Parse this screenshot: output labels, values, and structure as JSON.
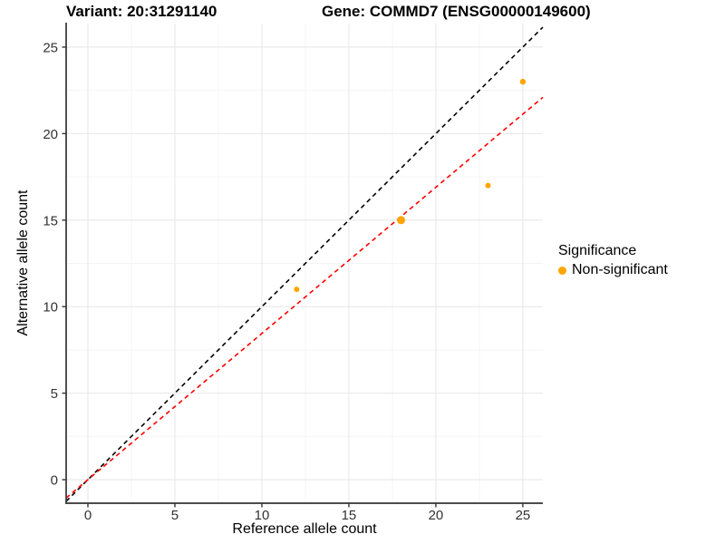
{
  "titles": {
    "left": "Variant: 20:31291140",
    "right": "Gene: COMMD7 (ENSG00000149600)"
  },
  "legend": {
    "title": "Significance",
    "items": [
      {
        "label": "Non-significant",
        "color": "#FFA500"
      }
    ]
  },
  "chart_data": {
    "type": "scatter",
    "xlabel": "Reference allele count",
    "ylabel": "Alternative allele count",
    "x_ticks": [
      0,
      5,
      10,
      15,
      20,
      25
    ],
    "y_ticks": [
      0,
      5,
      10,
      15,
      20,
      25
    ],
    "x_minor_ticks": [
      2.5,
      7.5,
      12.5,
      17.5,
      22.5
    ],
    "y_minor_ticks": [
      2.5,
      7.5,
      12.5,
      17.5,
      22.5
    ],
    "xlim": [
      -1.25,
      26.15
    ],
    "ylim": [
      -1.36,
      26.36
    ],
    "grid": true,
    "legend_position": "right",
    "series": [
      {
        "name": "Non-significant",
        "color": "#FFA500",
        "points": [
          {
            "x": 12,
            "y": 11,
            "r": 3
          },
          {
            "x": 18,
            "y": 15,
            "r": 4.5
          },
          {
            "x": 23,
            "y": 17,
            "r": 3
          },
          {
            "x": 25,
            "y": 23,
            "r": 3.2
          }
        ]
      }
    ],
    "reference_lines": [
      {
        "name": "identity-line",
        "slope": 1,
        "intercept": 0,
        "color": "#000000",
        "style": "dashed"
      },
      {
        "name": "fit-line",
        "slope": 0.845,
        "intercept": 0,
        "color": "#FF0000",
        "style": "dashed"
      }
    ],
    "colors": {
      "grid_major": "#E8E8E8",
      "grid_minor": "#F4F4F4",
      "axis_line": "#333333",
      "tick_mark": "#333333",
      "tick_label": "#333333",
      "point": "#FFA500"
    }
  }
}
